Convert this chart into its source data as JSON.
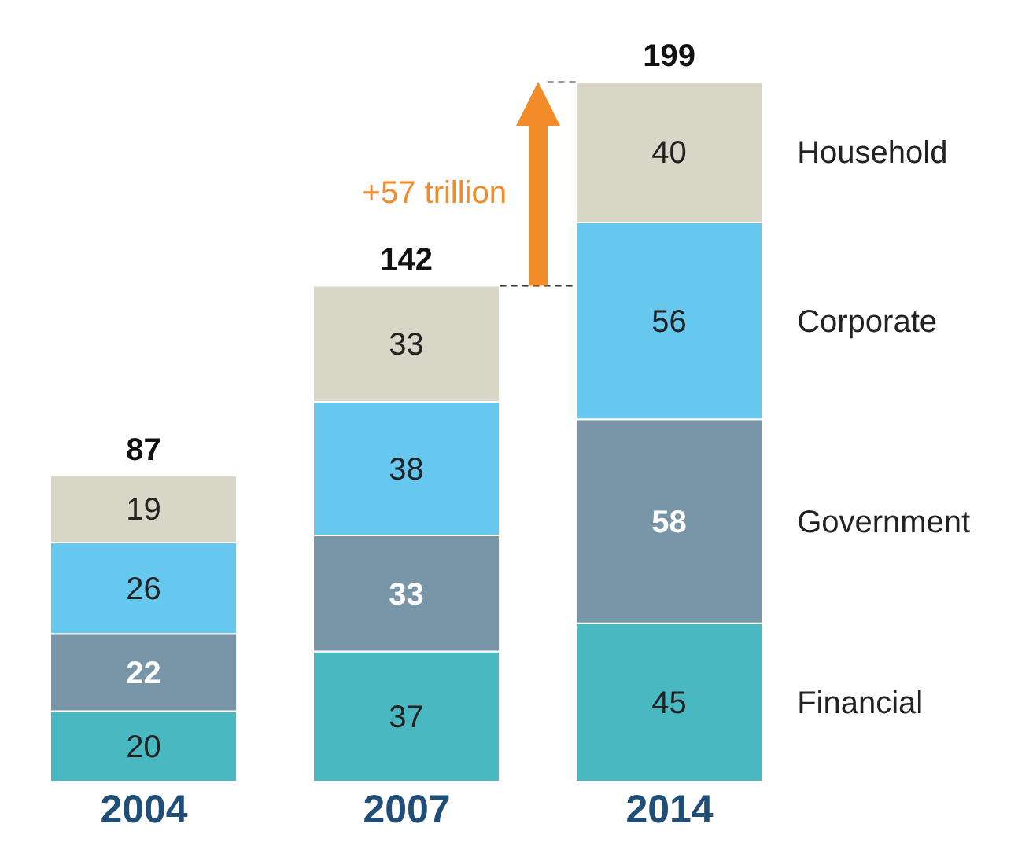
{
  "chart_data": {
    "type": "bar",
    "stacked": true,
    "categories": [
      "2004",
      "2007",
      "2014"
    ],
    "series": [
      {
        "name": "Financial",
        "color": "#4ab8c1",
        "values": [
          20,
          37,
          45
        ]
      },
      {
        "name": "Government",
        "color": "#7896a8",
        "values": [
          22,
          33,
          58
        ]
      },
      {
        "name": "Corporate",
        "color": "#66c8ef",
        "values": [
          26,
          38,
          56
        ]
      },
      {
        "name": "Household",
        "color": "#d8d7c7",
        "values": [
          19,
          33,
          40
        ]
      }
    ],
    "data_labels": true,
    "totals": [
      "87",
      "142",
      "199"
    ],
    "annotations": [
      "+57 trillion"
    ]
  }
}
